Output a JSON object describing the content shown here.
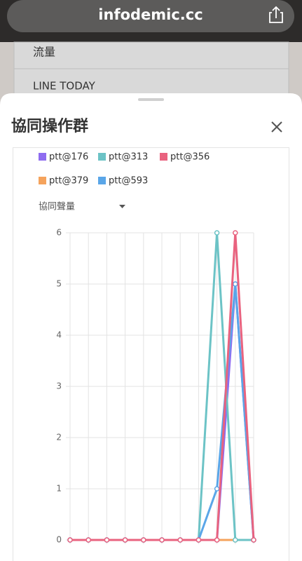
{
  "browser": {
    "url": "infodemic.cc"
  },
  "menu": {
    "items": [
      "流量",
      "LINE TODAY"
    ]
  },
  "sheet": {
    "title": "協同操作群",
    "dropdown": "協同聲量"
  },
  "chart_data": {
    "type": "line",
    "categories": [
      null,
      null,
      null,
      null,
      null,
      null,
      null,
      null,
      null,
      null,
      null
    ],
    "series": [
      {
        "name": "ptt@176",
        "color": "#8e6cf0",
        "values": [
          0,
          0,
          0,
          0,
          0,
          0,
          0,
          0,
          0,
          5,
          0
        ]
      },
      {
        "name": "ptt@313",
        "color": "#6cc3c6",
        "values": [
          0,
          0,
          0,
          0,
          0,
          0,
          0,
          0,
          6,
          0,
          0
        ]
      },
      {
        "name": "ptt@356",
        "color": "#e9637f",
        "values": [
          0,
          0,
          0,
          0,
          0,
          0,
          0,
          0,
          0,
          6,
          0
        ]
      },
      {
        "name": "ptt@379",
        "color": "#f5a35c",
        "values": [
          0,
          0,
          0,
          0,
          0,
          0,
          0,
          0,
          0,
          0,
          0
        ]
      },
      {
        "name": "ptt@593",
        "color": "#5aa6e8",
        "values": [
          0,
          0,
          0,
          0,
          0,
          0,
          0,
          0,
          1,
          5,
          0
        ]
      }
    ],
    "ylim": [
      0,
      6
    ],
    "yticks": [
      0,
      1,
      2,
      3,
      4,
      5,
      6
    ],
    "grid": true
  }
}
